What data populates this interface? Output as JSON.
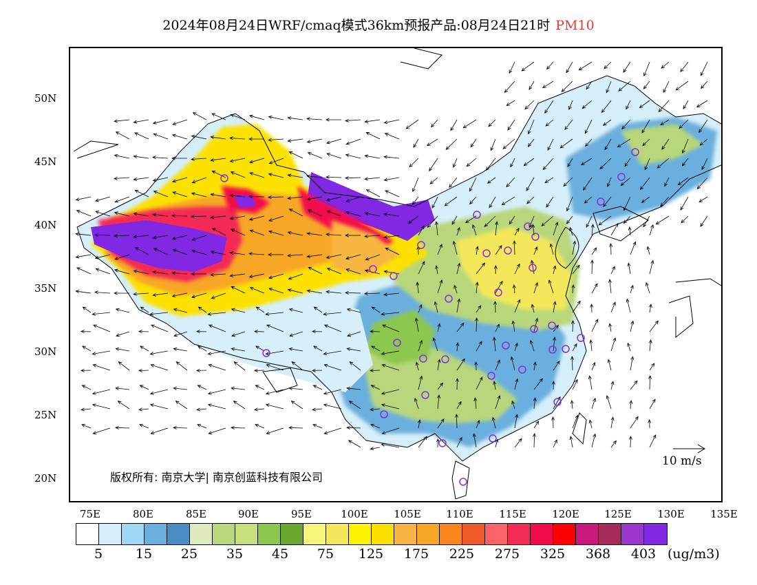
{
  "title": {
    "main": "2024年08月24日WRF/cmaq模式36km预报产品:08月24日21时",
    "variable": "PM10",
    "variable_color": "#e8392f"
  },
  "map": {
    "lat_labels": [
      "50N",
      "45N",
      "40N",
      "35N",
      "30N",
      "25N",
      "20N"
    ],
    "lon_labels": [
      "75E",
      "80E",
      "85E",
      "90E",
      "95E",
      "100E",
      "105E",
      "110E",
      "115E",
      "120E",
      "125E",
      "130E",
      "135E"
    ],
    "copyright": "版权所有: 南京大学| 南京创蓝科技有限公司",
    "wind_scale_label": "10 m/s",
    "station_marker_color": "#8a2be2"
  },
  "legend": {
    "colors": [
      "#ffffff",
      "#d6effa",
      "#9fd8f4",
      "#6aafdd",
      "#4a8cc4",
      "#dde9bf",
      "#b8d77c",
      "#c8e07c",
      "#8ec74e",
      "#6aa832",
      "#f5f57a",
      "#f3e85a",
      "#fff200",
      "#fce100",
      "#f7b543",
      "#f7a625",
      "#f7861b",
      "#ef5b2b",
      "#fb6466",
      "#f32c56",
      "#f30a4b",
      "#fb0000",
      "#c81a7c",
      "#a52c58",
      "#9837c9",
      "#8129e2"
    ],
    "labels": [
      "5",
      "15",
      "25",
      "35",
      "45",
      "75",
      "125",
      "175",
      "225",
      "275",
      "325",
      "368",
      "403"
    ],
    "unit": "(ug/m3)"
  }
}
